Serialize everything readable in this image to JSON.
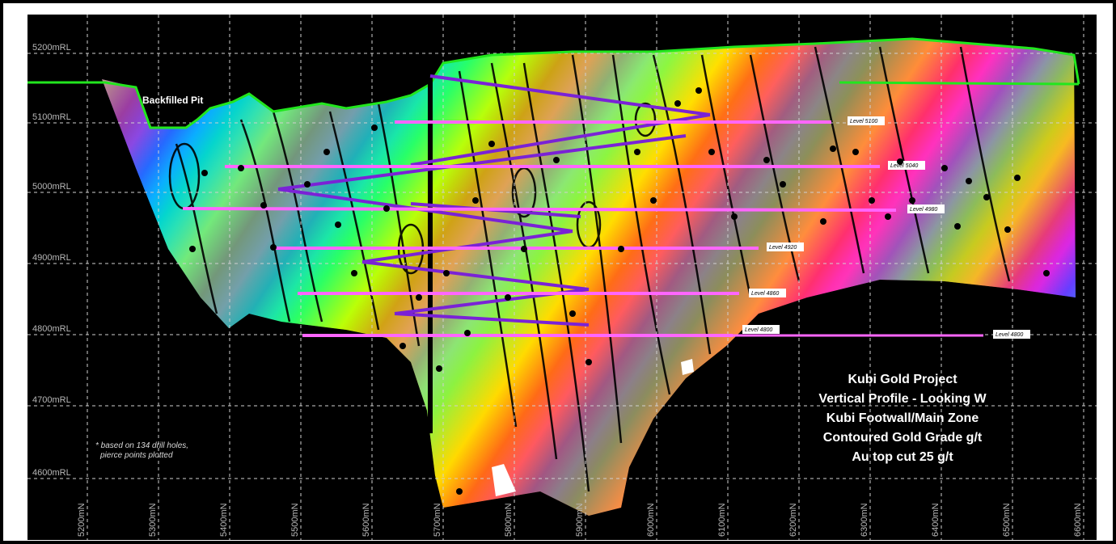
{
  "map": {
    "y_labels": [
      "5200mRL",
      "5100mRL",
      "5000mRL",
      "4900mRL",
      "4800mRL",
      "4700mRL",
      "4600mRL"
    ],
    "x_labels": [
      "5200mN",
      "5300mN",
      "5400mN",
      "5500mN",
      "5600mN",
      "5700mN",
      "5800mN",
      "5900mN",
      "6000mN",
      "6100mN",
      "6200mN",
      "6300mN",
      "6400mN",
      "6500mN",
      "6600mN"
    ],
    "pit_label": "Backfilled Pit",
    "levels": [
      {
        "label": "Level 5100"
      },
      {
        "label": "Level 5040"
      },
      {
        "label": "Level 4980"
      },
      {
        "label": "Level 4920"
      },
      {
        "label": "Level 4860"
      },
      {
        "label": "Level 4800"
      },
      {
        "label": "Level 4800"
      }
    ],
    "title_lines": [
      "Kubi Gold Project",
      "Vertical Profile - Looking W",
      "Kubi Footwall/Main Zone",
      "Contoured Gold Grade g/t",
      "Au top cut 25 g/t"
    ],
    "note_lines": [
      "* based on 134 drill holes,",
      "pierce points plotted"
    ],
    "colors": {
      "background": "#000000",
      "grid": "#d0d0d0",
      "surface": "#22e61e",
      "level_line": "#ff66ff",
      "drill_trace": "#7a22d6",
      "palette": [
        "#c020ff",
        "#3050ff",
        "#00c8ff",
        "#00ff90",
        "#90ff00",
        "#ffff00",
        "#ffa000",
        "#ff3030",
        "#ff30c0"
      ]
    }
  }
}
